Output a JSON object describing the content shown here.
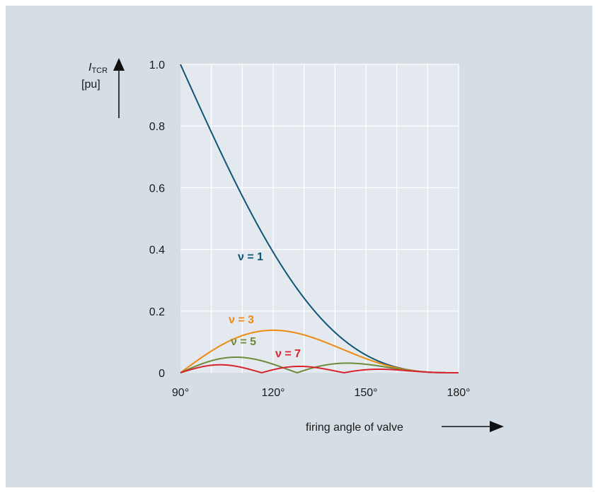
{
  "chart_data": {
    "type": "line",
    "ylabel_symbol": "I",
    "ylabel_subscript": "TCR",
    "ylabel_unit": "[pu]",
    "xlabel": "firing angle of valve",
    "xlim": [
      90,
      180
    ],
    "ylim": [
      0,
      1.0
    ],
    "x_ticks": [
      90,
      120,
      150,
      180
    ],
    "x_tick_labels": [
      "90°",
      "120°",
      "150°",
      "180°"
    ],
    "y_ticks": [
      0,
      0.2,
      0.4,
      0.6,
      0.8,
      1.0
    ],
    "y_tick_labels": [
      "0",
      "0.2",
      "0.4",
      "0.6",
      "0.8",
      "1.0"
    ],
    "grid": true,
    "series": [
      {
        "name": "ν = 1",
        "color": "#0f5577"
      },
      {
        "name": "ν = 3",
        "color": "#ee8a10"
      },
      {
        "name": "ν = 5",
        "color": "#6e8a3c"
      },
      {
        "name": "ν = 7",
        "color": "#d9232e"
      }
    ]
  }
}
